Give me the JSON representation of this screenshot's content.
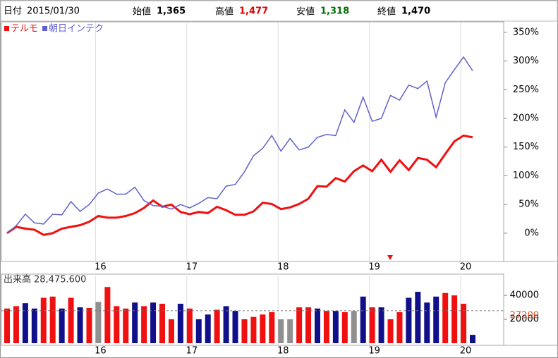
{
  "header": {
    "date_label": "日付",
    "date": "2015/01/30",
    "prices": [
      {
        "label": "始値",
        "value": "1,365",
        "color": "#000000"
      },
      {
        "label": "高値",
        "value": "1,477",
        "color": "#e00000"
      },
      {
        "label": "安値",
        "value": "1,318",
        "color": "#007000"
      },
      {
        "label": "終値",
        "value": "1,470",
        "color": "#000000"
      }
    ]
  },
  "chart_data": [
    {
      "type": "line",
      "grid": "x",
      "categories": [
        null,
        null,
        null,
        null,
        null,
        null,
        null,
        null,
        null,
        null,
        "16",
        null,
        null,
        null,
        null,
        null,
        null,
        null,
        null,
        null,
        "17",
        null,
        null,
        null,
        null,
        null,
        null,
        null,
        null,
        null,
        "18",
        null,
        null,
        null,
        null,
        null,
        null,
        null,
        null,
        null,
        "19",
        null,
        null,
        null,
        null,
        null,
        null,
        null,
        null,
        null,
        "20",
        null
      ],
      "series": [
        {
          "name": "テルモ",
          "color": "#f01010",
          "width": 3,
          "values": [
            0,
            11,
            8,
            6,
            -3,
            0,
            8,
            11,
            14,
            20,
            30,
            27,
            27,
            30,
            35,
            44,
            57,
            46,
            50,
            37,
            33,
            37,
            35,
            46,
            40,
            32,
            32,
            38,
            53,
            51,
            42,
            45,
            51,
            60,
            82,
            81,
            96,
            90,
            108,
            118,
            108,
            128,
            107,
            127,
            110,
            131,
            128,
            115,
            138,
            160,
            170,
            167
          ]
        },
        {
          "name": "朝日インテク",
          "color": "#6060d0",
          "width": 1.5,
          "values": [
            0,
            13,
            33,
            18,
            16,
            33,
            32,
            55,
            38,
            50,
            70,
            77,
            68,
            68,
            80,
            57,
            48,
            47,
            42,
            50,
            44,
            52,
            62,
            60,
            82,
            85,
            107,
            135,
            148,
            170,
            143,
            165,
            145,
            150,
            167,
            172,
            170,
            215,
            193,
            237,
            195,
            200,
            240,
            232,
            258,
            252,
            265,
            202,
            262,
            285,
            307,
            283
          ]
        }
      ],
      "ylim": [
        -48,
        367
      ],
      "yticks": [
        {
          "value": 0,
          "label": "0%"
        },
        {
          "value": 50,
          "label": "50%"
        },
        {
          "value": 100,
          "label": "100%"
        },
        {
          "value": 150,
          "label": "150%"
        },
        {
          "value": 200,
          "label": "200%"
        },
        {
          "value": 250,
          "label": "250%"
        },
        {
          "value": 300,
          "label": "300%"
        },
        {
          "value": 350,
          "label": "350%"
        }
      ]
    },
    {
      "type": "bar",
      "title": "出来高",
      "subtitle": "28,475.600",
      "grid": "x",
      "categories": [
        null,
        null,
        null,
        null,
        null,
        null,
        null,
        null,
        null,
        null,
        "16",
        null,
        null,
        null,
        null,
        null,
        null,
        null,
        null,
        null,
        "17",
        null,
        null,
        null,
        null,
        null,
        null,
        null,
        null,
        null,
        "18",
        null,
        null,
        null,
        null,
        null,
        null,
        null,
        null,
        null,
        "19",
        null,
        null,
        null,
        null,
        null,
        null,
        null,
        null,
        null,
        "20",
        null
      ],
      "values": [
        29000,
        31000,
        33500,
        29000,
        38000,
        39000,
        29000,
        38000,
        30000,
        29500,
        34500,
        47000,
        31000,
        29000,
        34000,
        31000,
        34000,
        33000,
        20000,
        33000,
        29000,
        20000,
        24000,
        28000,
        31000,
        27000,
        20000,
        22000,
        24000,
        26000,
        20000,
        20000,
        30000,
        30000,
        29000,
        27000,
        27000,
        26000,
        27000,
        39000,
        30000,
        30000,
        20000,
        26000,
        38000,
        43000,
        34000,
        39000,
        42000,
        40000,
        33000,
        7000
      ],
      "colors": [
        "#f01010",
        "#f01010",
        "#10108a",
        "#10108a",
        "#f01010",
        "#f01010",
        "#10108a",
        "#f01010",
        "#10108a",
        "#f01010",
        "#909090",
        "#f01010",
        "#f01010",
        "#f01010",
        "#10108a",
        "#f01010",
        "#10108a",
        "#f01010",
        "#f01010",
        "#10108a",
        "#f01010",
        "#10108a",
        "#10108a",
        "#f01010",
        "#10108a",
        "#10108a",
        "#f01010",
        "#f01010",
        "#f01010",
        "#f01010",
        "#909090",
        "#909090",
        "#f01010",
        "#f01010",
        "#10108a",
        "#f01010",
        "#10108a",
        "#f01010",
        "#909090",
        "#10108a",
        "#f01010",
        "#10108a",
        "#f01010",
        "#f01010",
        "#10108a",
        "#10108a",
        "#10108a",
        "#10108a",
        "#f01010",
        "#f01010",
        "#f01010",
        "#10108a"
      ],
      "reference_line": {
        "value": 27200,
        "color": "#e05020"
      },
      "ylim": [
        0,
        56000
      ],
      "yticks": [
        20000,
        40000
      ]
    }
  ]
}
